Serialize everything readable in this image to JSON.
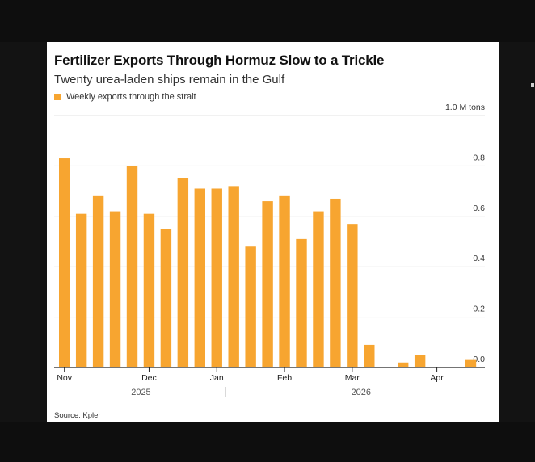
{
  "chart_data": {
    "type": "bar",
    "title": "Fertilizer Exports Through Hormuz Slow to a Trickle",
    "subtitle": "Twenty urea-laden ships remain in the Gulf",
    "series": [
      {
        "name": "Weekly exports through the strait",
        "color": "#f7a530",
        "values": [
          0.83,
          0.61,
          0.68,
          0.62,
          0.8,
          0.61,
          0.55,
          0.75,
          0.71,
          0.71,
          0.72,
          0.48,
          0.66,
          0.68,
          0.51,
          0.62,
          0.67,
          0.57,
          0.09,
          0.0,
          0.02,
          0.05,
          0.0,
          0.0,
          0.03
        ]
      }
    ],
    "ylim": [
      0,
      1.0
    ],
    "yticks": [
      {
        "value": 1.0,
        "label": "1.0 M tons"
      },
      {
        "value": 0.8,
        "label": "0.8"
      },
      {
        "value": 0.6,
        "label": "0.6"
      },
      {
        "value": 0.4,
        "label": "0.4"
      },
      {
        "value": 0.2,
        "label": "0.2"
      },
      {
        "value": 0.0,
        "label": "0.0"
      }
    ],
    "xticks": [
      {
        "index": 0,
        "label": "Nov"
      },
      {
        "index": 5,
        "label": "Dec"
      },
      {
        "index": 9,
        "label": "Jan"
      },
      {
        "index": 13,
        "label": "Feb"
      },
      {
        "index": 17,
        "label": "Mar"
      },
      {
        "index": 22,
        "label": "Apr"
      }
    ],
    "year_labels": [
      {
        "index": 5,
        "label": "2025"
      },
      {
        "index": 18,
        "label": "2026"
      }
    ],
    "year_divider_index": 9.5,
    "grid": true,
    "legend": "top-left",
    "source": "Source: Kpler"
  }
}
